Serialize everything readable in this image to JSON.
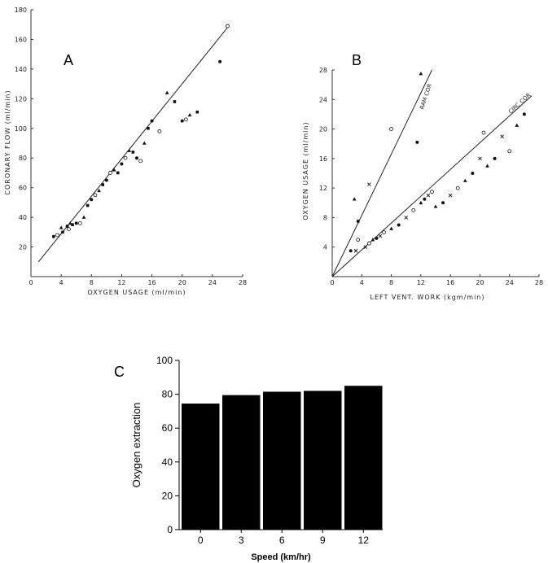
{
  "chart_data": [
    {
      "panel_label": "A",
      "type": "scatter",
      "title": "",
      "xlabel": "OXYGEN USAGE  (ml/min)",
      "ylabel": "CORONARY  FLOW  (ml/min)",
      "xlim": [
        0,
        28
      ],
      "ylim": [
        0,
        180
      ],
      "x_ticks": [
        0,
        4,
        8,
        12,
        16,
        20,
        24,
        28
      ],
      "y_ticks": [
        20,
        40,
        60,
        80,
        100,
        120,
        140,
        160,
        180
      ],
      "regression_line": {
        "x": [
          1,
          26
        ],
        "y": [
          10,
          168
        ]
      },
      "series": [
        {
          "name": "points",
          "x": [
            3,
            3.5,
            4,
            4.2,
            4.8,
            5,
            5.2,
            5.5,
            6,
            6.5,
            7,
            7.5,
            8,
            8.5,
            9,
            9.5,
            10,
            10.5,
            11,
            11.5,
            12,
            12.5,
            13,
            13.5,
            14,
            14.5,
            15,
            15.5,
            16,
            17,
            18,
            19,
            20,
            20.5,
            21,
            22,
            25,
            26
          ],
          "y": [
            27,
            28,
            33,
            30,
            34,
            32,
            36,
            35,
            36,
            36,
            40,
            48,
            52,
            55,
            58,
            62,
            65,
            70,
            72,
            70,
            76,
            80,
            85,
            84,
            80,
            78,
            90,
            100,
            105,
            98,
            124,
            118,
            105,
            106,
            109,
            111,
            145,
            169
          ]
        }
      ]
    },
    {
      "panel_label": "B",
      "type": "scatter",
      "title": "",
      "xlabel": "LEFT  VENT.  WORK  (kgm/min)",
      "ylabel": "OXYGEN  USAGE  (ml/min)",
      "xlim": [
        0,
        28
      ],
      "ylim": [
        0,
        28
      ],
      "x_ticks": [
        0,
        4,
        8,
        12,
        16,
        20,
        24,
        28
      ],
      "y_ticks": [
        4,
        8,
        12,
        16,
        20,
        24,
        28
      ],
      "line_labels": [
        "RAM   COR",
        "CIRC  COR"
      ],
      "regression_lines": [
        {
          "name": "RAM COR",
          "x": [
            0,
            13.5
          ],
          "y": [
            0,
            28
          ]
        },
        {
          "name": "CIRC COR",
          "x": [
            0,
            27
          ],
          "y": [
            0,
            24.5
          ]
        }
      ],
      "series": [
        {
          "name": "RAM COR",
          "x": [
            3,
            3.5,
            5,
            8,
            12,
            11.5,
            3.2,
            3.5
          ],
          "y": [
            10.5,
            7.5,
            12.5,
            20,
            27.5,
            18.2,
            3.5,
            5
          ]
        },
        {
          "name": "CIRC COR",
          "x": [
            2.5,
            4.5,
            5,
            5.5,
            6,
            6.5,
            7,
            8,
            9,
            10,
            11,
            12,
            12.5,
            13,
            13.5,
            14,
            15,
            16,
            17,
            18,
            19,
            20,
            20.5,
            21,
            22,
            23,
            24,
            25,
            26
          ],
          "y": [
            3.5,
            4,
            4.5,
            5,
            5.2,
            5.5,
            6,
            6.5,
            7,
            8,
            9,
            10,
            10.5,
            11,
            11.5,
            9.5,
            10,
            11,
            12,
            13,
            14,
            16,
            19.5,
            15,
            16,
            19,
            17,
            20.5,
            22
          ]
        }
      ]
    },
    {
      "panel_label": "C",
      "type": "bar",
      "title": "",
      "xlabel": "Speed (km/hr)",
      "ylabel": "Oxygen extraction",
      "ylim": [
        0,
        100
      ],
      "y_ticks": [
        0,
        20,
        40,
        60,
        80,
        100
      ],
      "categories": [
        "0",
        "3",
        "6",
        "9",
        "12"
      ],
      "values": [
        74.5,
        79.5,
        81.5,
        82,
        85
      ],
      "colors": {
        "bar": "#000000"
      }
    }
  ]
}
